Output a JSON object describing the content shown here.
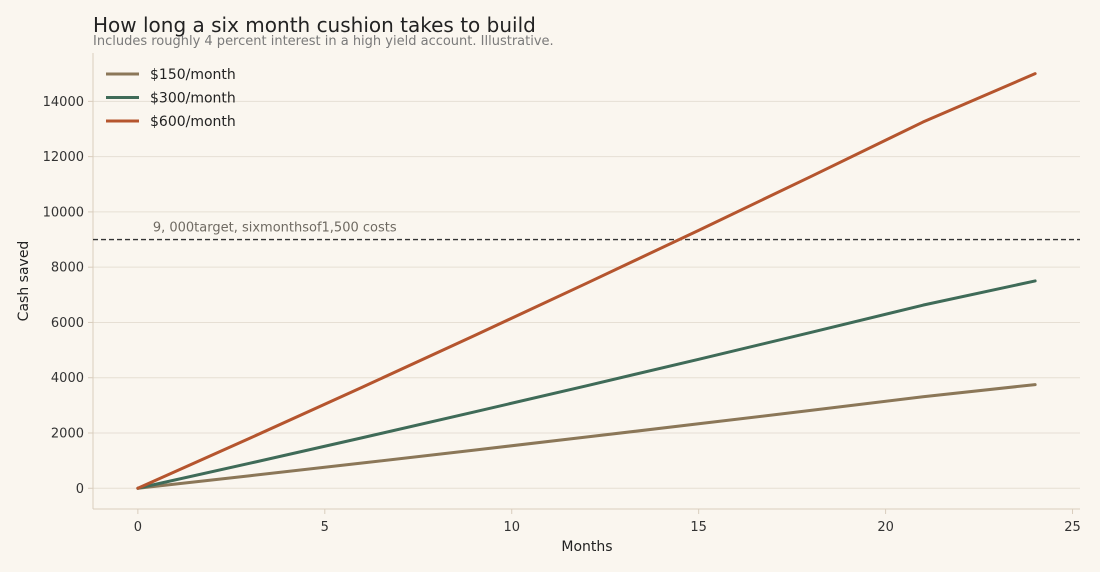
{
  "chart_data": {
    "type": "line",
    "title": "How long a six month cushion takes to build",
    "subtitle": "Includes roughly 4 percent interest in a high yield account. Illustrative.",
    "xlabel": "Months",
    "ylabel": "Cash saved",
    "xlim": [
      -1.2,
      25.2
    ],
    "ylim": [
      -750,
      15750
    ],
    "x_ticks": [
      0,
      5,
      10,
      15,
      20,
      25
    ],
    "y_ticks": [
      0,
      2000,
      4000,
      6000,
      8000,
      10000,
      12000,
      14000
    ],
    "grid": "horizontal",
    "legend_position": "top-left",
    "x": [
      0,
      3,
      6,
      9,
      12,
      15,
      18,
      21,
      24
    ],
    "series": [
      {
        "name": "$150/month",
        "color": "#8b7758",
        "values": [
          0,
          454,
          914,
          1381,
          1854,
          2333,
          2820,
          3313,
          3751
        ]
      },
      {
        "name": "$300/month",
        "color": "#3f6b58",
        "values": [
          0,
          908,
          1829,
          2762,
          3708,
          4667,
          5639,
          6626,
          7502
        ]
      },
      {
        "name": "$600/month",
        "color": "#b5552e",
        "values": [
          0,
          1815,
          3657,
          5524,
          7416,
          9333,
          11279,
          13251,
          15004
        ]
      }
    ],
    "reference_line": {
      "y": 9000,
      "label": "9, 000target, sixmonthsof1,500 costs",
      "color": "#333333"
    }
  }
}
